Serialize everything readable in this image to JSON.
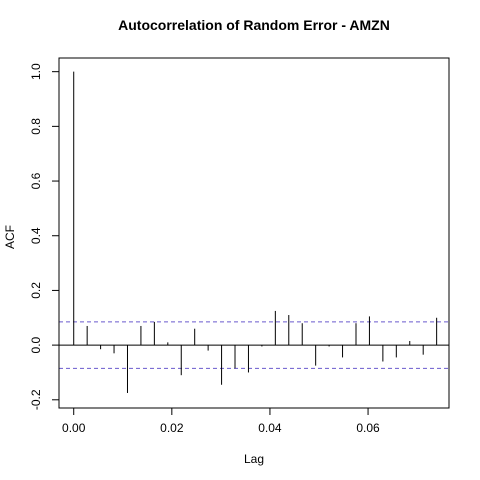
{
  "chart_data": {
    "type": "bar",
    "title": "Autocorrelation of Random Error - AMZN",
    "xlabel": "Lag",
    "ylabel": "ACF",
    "xlim": [
      -0.003,
      0.0765
    ],
    "ylim": [
      -0.23,
      1.05
    ],
    "x_ticks": [
      0.0,
      0.02,
      0.04,
      0.06
    ],
    "x_tick_labels": [
      "0.00",
      "0.02",
      "0.04",
      "0.06"
    ],
    "y_ticks": [
      -0.2,
      0.0,
      0.2,
      0.4,
      0.6,
      0.8,
      1.0
    ],
    "y_tick_labels": [
      "-0.2",
      "0.0",
      "0.2",
      "0.4",
      "0.6",
      "0.8",
      "1.0"
    ],
    "confidence_bound": 0.085,
    "confidence_color": "#6a5acd",
    "bar_color": "#000000",
    "grid": false,
    "legend": "none",
    "x": [
      0.0,
      0.00274,
      0.00548,
      0.00822,
      0.01096,
      0.0137,
      0.01644,
      0.01918,
      0.02192,
      0.02466,
      0.0274,
      0.03014,
      0.03288,
      0.03562,
      0.03836,
      0.0411,
      0.04384,
      0.04658,
      0.04932,
      0.05206,
      0.0548,
      0.05754,
      0.06028,
      0.06302,
      0.06576,
      0.0685,
      0.07124,
      0.07398
    ],
    "values": [
      1.0,
      0.07,
      -0.015,
      -0.03,
      -0.175,
      0.07,
      0.085,
      0.01,
      -0.11,
      0.06,
      -0.02,
      -0.145,
      -0.085,
      -0.1,
      -0.005,
      0.125,
      0.11,
      0.08,
      -0.075,
      -0.005,
      -0.045,
      0.08,
      0.105,
      -0.06,
      -0.045,
      0.015,
      -0.035,
      0.1
    ]
  }
}
